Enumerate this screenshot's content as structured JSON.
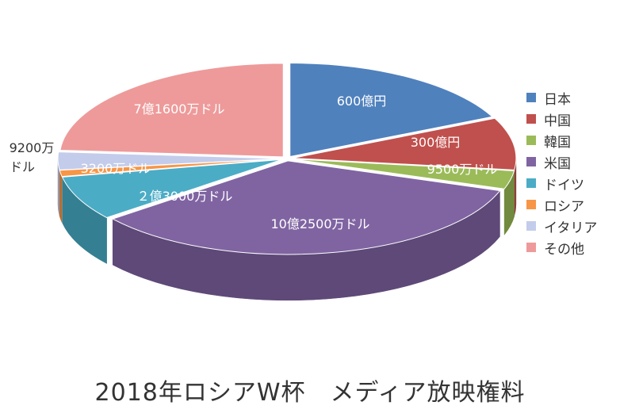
{
  "chart_data": {
    "type": "pie",
    "style": "3d-exploded",
    "title": "2018年ロシアW杯　メディア放映権料",
    "legend_position": "right",
    "slices": [
      {
        "name": "日本",
        "label": "600億円",
        "value": 540,
        "color": "#4F81BD",
        "side": "#3A618F"
      },
      {
        "name": "中国",
        "label": "300億円",
        "value": 270,
        "color": "#C0504D",
        "side": "#8E3A37"
      },
      {
        "name": "韓国",
        "label": "9500万ドル",
        "value": 95,
        "color": "#9BBB59",
        "side": "#718A3F"
      },
      {
        "name": "米国",
        "label": "10億2500万ドル",
        "value": 1025,
        "color": "#8064A2",
        "side": "#5E4978"
      },
      {
        "name": "ドイツ",
        "label": "２億3000万ドル",
        "value": 230,
        "color": "#4BACC6",
        "side": "#357F93"
      },
      {
        "name": "ロシア",
        "label": "3200万ドル",
        "value": 32,
        "color": "#F79646",
        "side": "#B86E31"
      },
      {
        "name": "イタリア",
        "label": "9200万ドル",
        "value": 92,
        "color": "#C3CCEB",
        "side": "#929AB5"
      },
      {
        "name": "その他",
        "label": "7億1600万ドル",
        "value": 716,
        "color": "#EE9A9A",
        "side": "#B57272"
      }
    ]
  }
}
